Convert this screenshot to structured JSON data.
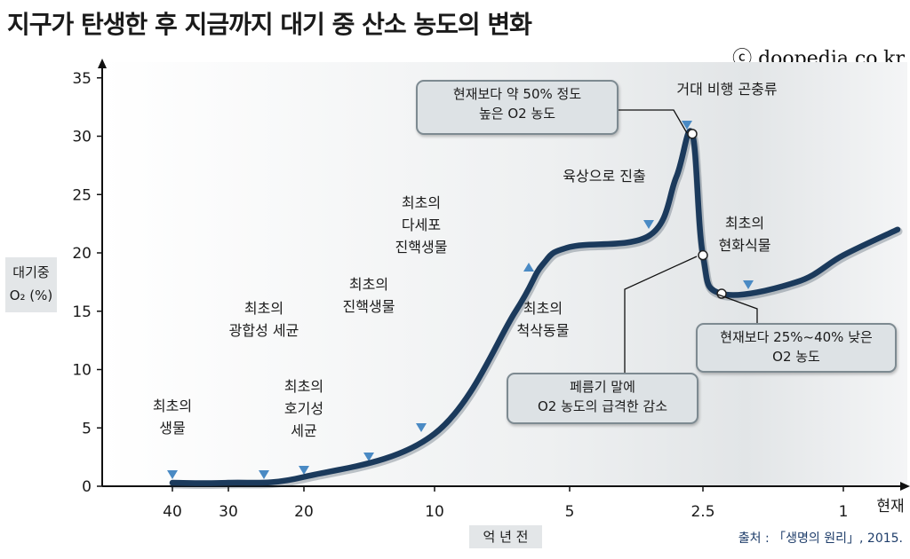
{
  "title": "지구가 탄생한 후 지금까지 대기 중 산소 농도의 변화",
  "copyright": "ⓒ doopedia.co.kr",
  "source": "출처 : 「생명의 원리」, 2015.",
  "colors": {
    "curve": "#1b3a5c",
    "arrow": "#4a8ac4",
    "callout_fill": "#dde2e5",
    "callout_border": "#7d8a91",
    "label_bg": "#e3e6e8"
  },
  "chart_data": {
    "type": "line",
    "title": "지구가 탄생한 후 지금까지 대기 중 산소 농도의 변화",
    "ylabel_line1": "대기중",
    "ylabel_line2": "O₂ (%)",
    "xlabel": "억 년 전",
    "ylim": [
      0,
      35
    ],
    "yticks": [
      "0",
      "5",
      "10",
      "15",
      "20",
      "25",
      "30",
      "35"
    ],
    "xticks": [
      "40",
      "30",
      "20",
      "10",
      "5",
      "2.5",
      "1",
      "현재"
    ],
    "series": [
      {
        "points": [
          {
            "x": "40",
            "y": 0.3
          },
          {
            "x": "30",
            "y": 0.3
          },
          {
            "x": "20",
            "y": 0.8
          },
          {
            "x": "10",
            "y": 4.5
          },
          {
            "x": "7",
            "y": 15.0
          },
          {
            "x": "6",
            "y": 19.0
          },
          {
            "x": "5",
            "y": 20.5
          },
          {
            "x": "3.5",
            "y": 21.5
          },
          {
            "x": "3",
            "y": 26.5
          },
          {
            "x": "2.7",
            "y": 30.2
          },
          {
            "x": "2.5",
            "y": 19.8
          },
          {
            "x": "2.3",
            "y": 16.5
          },
          {
            "x": "1.5",
            "y": 17.5
          },
          {
            "x": "1",
            "y": 19.8
          },
          {
            "x": "현재",
            "y": 22.0
          }
        ]
      }
    ],
    "annotations": [
      {
        "lines": [
          "최초의",
          "생물"
        ],
        "x": "40"
      },
      {
        "lines": [
          "최초의",
          "광합성 세균"
        ],
        "x": "25"
      },
      {
        "lines": [
          "최초의",
          "호기성",
          "세균"
        ],
        "x": "20"
      },
      {
        "lines": [
          "최초의",
          "진핵생물"
        ],
        "x": "15"
      },
      {
        "lines": [
          "최초의",
          "다세포",
          "진핵생물"
        ],
        "x": "10"
      },
      {
        "lines": [
          "최초의",
          "척삭동물"
        ],
        "x": "6"
      },
      {
        "lines": [
          "육상으로 진출"
        ],
        "x": "3.5"
      },
      {
        "lines": [
          "거대 비행 곤충류"
        ],
        "x": "2.7"
      },
      {
        "lines": [
          "최초의",
          "현화식물"
        ],
        "x": "2"
      }
    ],
    "callouts": [
      {
        "lines": [
          "현재보다 약 50% 정도",
          "높은 O2 농도"
        ]
      },
      {
        "lines": [
          "페름기 말에",
          "O2 농도의 급격한 감소"
        ]
      },
      {
        "lines": [
          "현재보다 25%~40% 낮은",
          "O2 농도"
        ]
      }
    ]
  }
}
